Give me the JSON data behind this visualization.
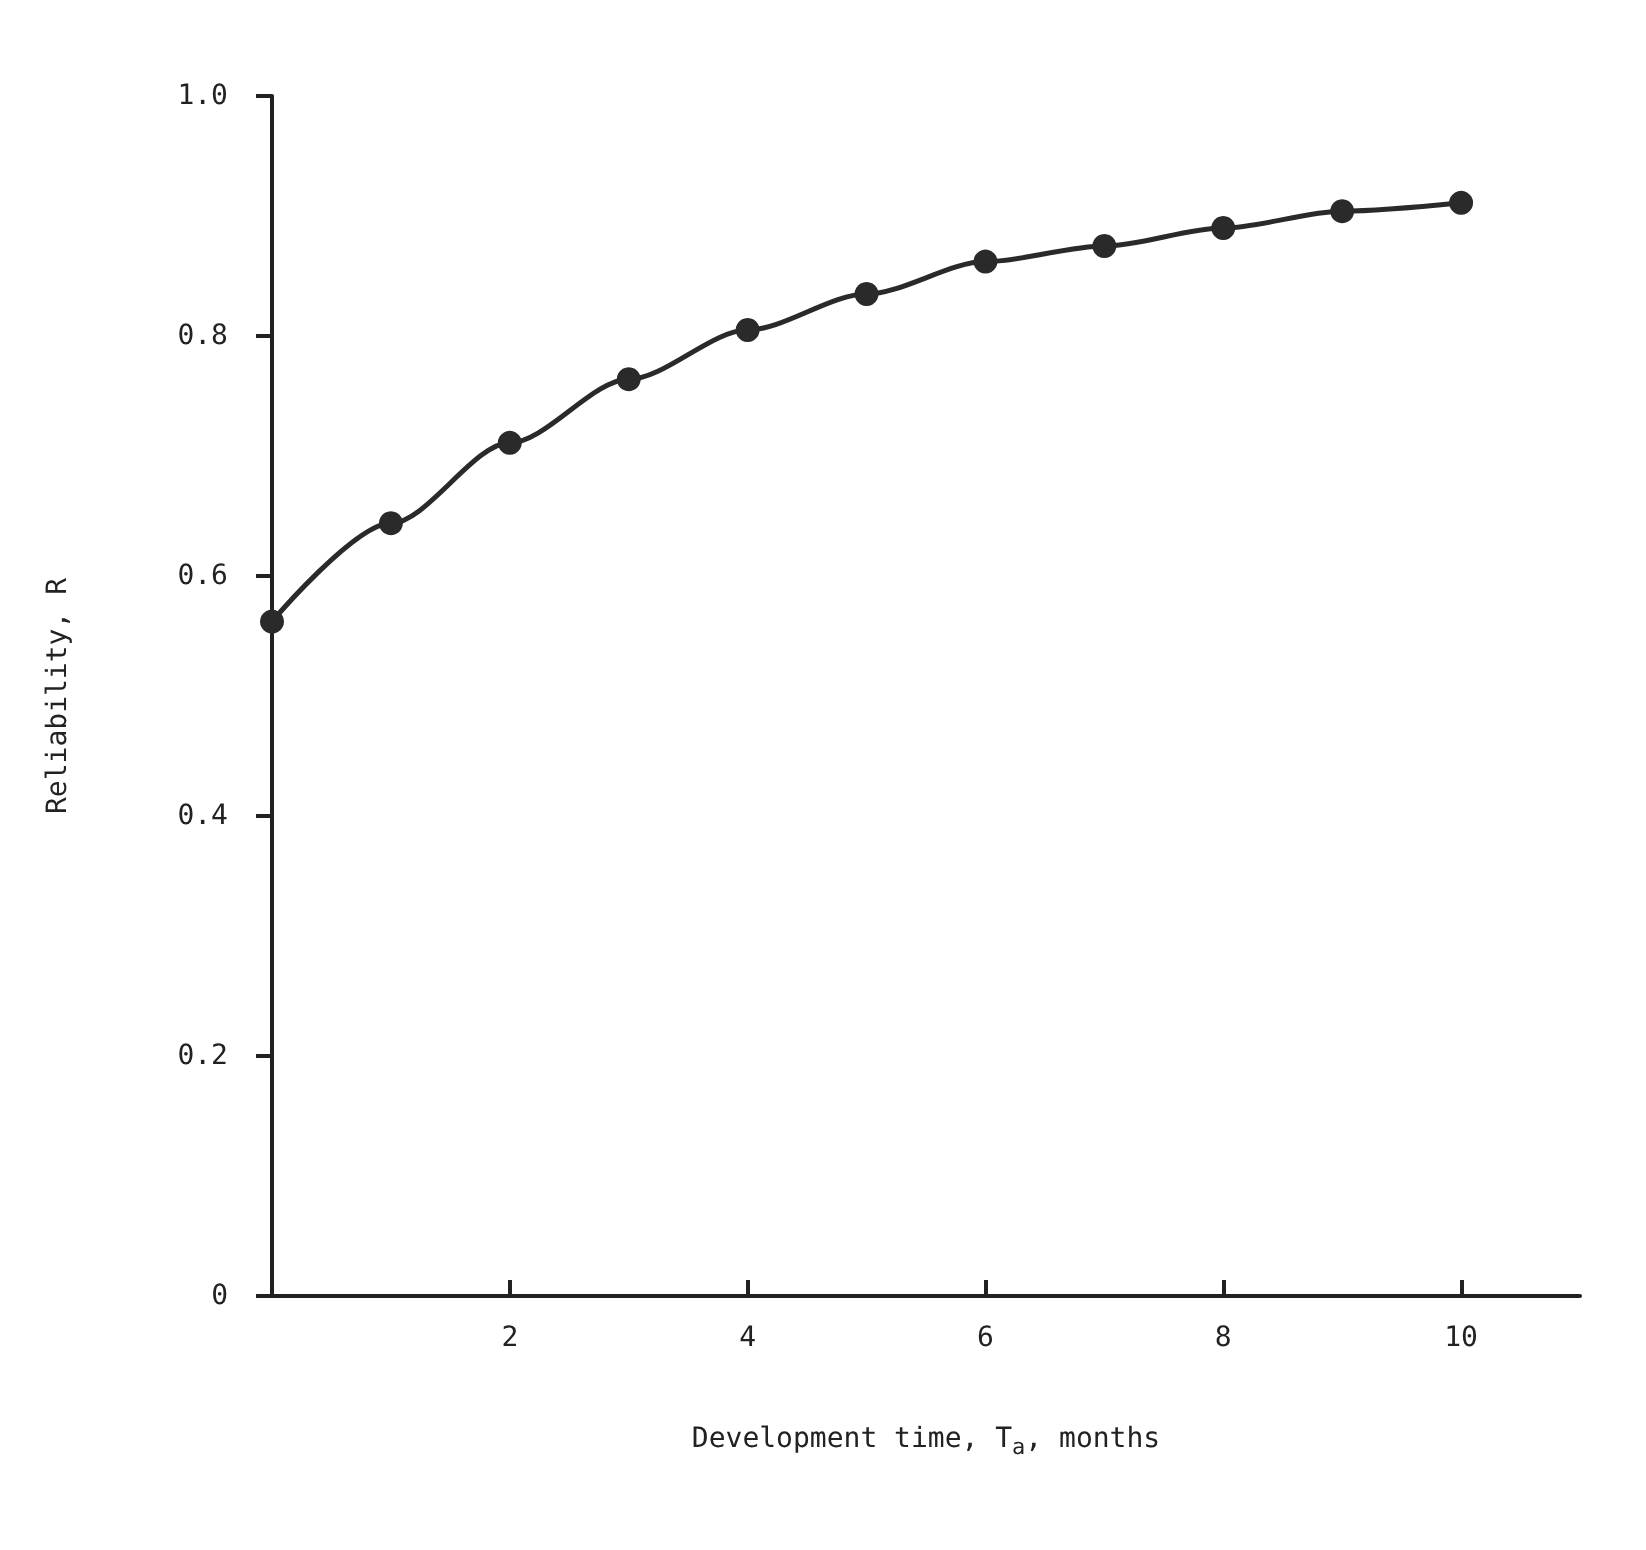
{
  "chart_data": {
    "type": "line",
    "xlabel": "Development time, T$_{a}$, months",
    "ylabel": "Reliability, R",
    "x": [
      0,
      1,
      2,
      3,
      4,
      5,
      6,
      7,
      8,
      9,
      10
    ],
    "series": [
      {
        "color": "#2a2a2a",
        "values": [
          0.562,
          0.644,
          0.711,
          0.764,
          0.805,
          0.835,
          0.862,
          0.875,
          0.89,
          0.904,
          0.911
        ]
      }
    ],
    "xlim": [
      0,
      11
    ],
    "xticks": [
      {
        "value": 0,
        "label": null
      },
      2,
      4,
      6,
      8,
      10
    ],
    "ylim": [
      0,
      1
    ],
    "yticks": [
      0,
      0.2,
      0.4,
      0.6,
      0.8,
      {
        "value": 1,
        "label": "1.0"
      }
    ],
    "grid": false,
    "marker": "circle",
    "line_style": "solid"
  }
}
